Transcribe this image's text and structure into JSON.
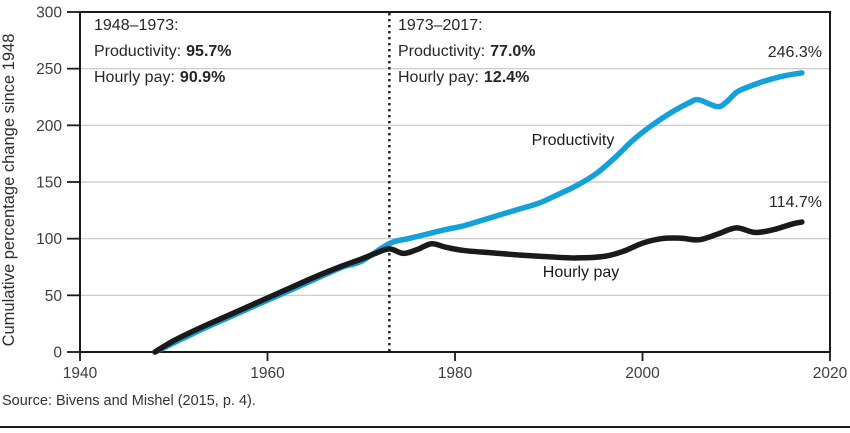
{
  "figure": {
    "source": "Source: Bivens and Mishel (2015, p. 4)."
  },
  "chart_data": {
    "type": "line",
    "title": "",
    "xlabel": "",
    "ylabel": "Cumulative percentage change since 1948",
    "xlim": [
      1940,
      2020
    ],
    "ylim": [
      0,
      300
    ],
    "xticks": [
      1940,
      1960,
      1980,
      2000,
      2020
    ],
    "yticks": [
      0,
      50,
      100,
      150,
      200,
      250,
      300
    ],
    "grid": "horizontal gridlines only, full plot frame box",
    "legend": "inline labels next to lines",
    "vline": {
      "x": 1973,
      "style": "dotted",
      "color": "#1a1a1a"
    },
    "colors": {
      "productivity": "#14a0da",
      "hourly_pay": "#1a1a1a",
      "grid": "#c6c6c6",
      "frame": "#1a1a1a",
      "tick_text": "#3d3d3d"
    },
    "series": [
      {
        "name": "Productivity",
        "end_label": "246.3%",
        "color": "#14a0da",
        "points": [
          [
            1948,
            0
          ],
          [
            1950,
            8
          ],
          [
            1953,
            20
          ],
          [
            1956,
            31
          ],
          [
            1959,
            42
          ],
          [
            1962,
            53
          ],
          [
            1965,
            64
          ],
          [
            1968,
            75
          ],
          [
            1970,
            80
          ],
          [
            1973,
            95.7
          ],
          [
            1975,
            100
          ],
          [
            1977,
            104
          ],
          [
            1979,
            108
          ],
          [
            1981,
            111.5
          ],
          [
            1983,
            116.5
          ],
          [
            1985,
            121.5
          ],
          [
            1987,
            126.5
          ],
          [
            1989,
            131.5
          ],
          [
            1991,
            139
          ],
          [
            1993,
            147
          ],
          [
            1995,
            157
          ],
          [
            1997,
            171
          ],
          [
            1999,
            187
          ],
          [
            2001,
            200
          ],
          [
            2003,
            211
          ],
          [
            2005,
            220
          ],
          [
            2006,
            222.5
          ],
          [
            2008,
            216.5
          ],
          [
            2009,
            221
          ],
          [
            2010,
            229
          ],
          [
            2011,
            233
          ],
          [
            2013,
            239
          ],
          [
            2015,
            243.5
          ],
          [
            2017,
            246.3
          ]
        ]
      },
      {
        "name": "Hourly pay",
        "end_label": "114.7%",
        "color": "#1a1a1a",
        "points": [
          [
            1948,
            0
          ],
          [
            1950,
            10
          ],
          [
            1953,
            22
          ],
          [
            1956,
            33
          ],
          [
            1959,
            44
          ],
          [
            1962,
            55
          ],
          [
            1965,
            66
          ],
          [
            1968,
            76
          ],
          [
            1970,
            82
          ],
          [
            1971.5,
            87
          ],
          [
            1973,
            91
          ],
          [
            1974.5,
            87
          ],
          [
            1976,
            90.5
          ],
          [
            1977.5,
            95.5
          ],
          [
            1979,
            92.5
          ],
          [
            1981,
            89.5
          ],
          [
            1984,
            87.5
          ],
          [
            1987,
            85.5
          ],
          [
            1990,
            84
          ],
          [
            1993,
            83
          ],
          [
            1996,
            84.5
          ],
          [
            1998,
            89
          ],
          [
            2000,
            96
          ],
          [
            2002,
            100
          ],
          [
            2004,
            100.5
          ],
          [
            2006,
            99
          ],
          [
            2008,
            104
          ],
          [
            2010,
            109.5
          ],
          [
            2012,
            105.5
          ],
          [
            2014,
            108
          ],
          [
            2016,
            113
          ],
          [
            2017,
            114.7
          ]
        ]
      }
    ],
    "annotations": [
      {
        "heading": "1948–1973:",
        "rows": [
          {
            "label": "Productivity:",
            "value": "95.7%"
          },
          {
            "label": "Hourly pay:",
            "value": "90.9%"
          }
        ]
      },
      {
        "heading": "1973–2017:",
        "rows": [
          {
            "label": "Productivity:",
            "value": "77.0%"
          },
          {
            "label": "Hourly pay:",
            "value": "12.4%"
          }
        ]
      }
    ]
  }
}
